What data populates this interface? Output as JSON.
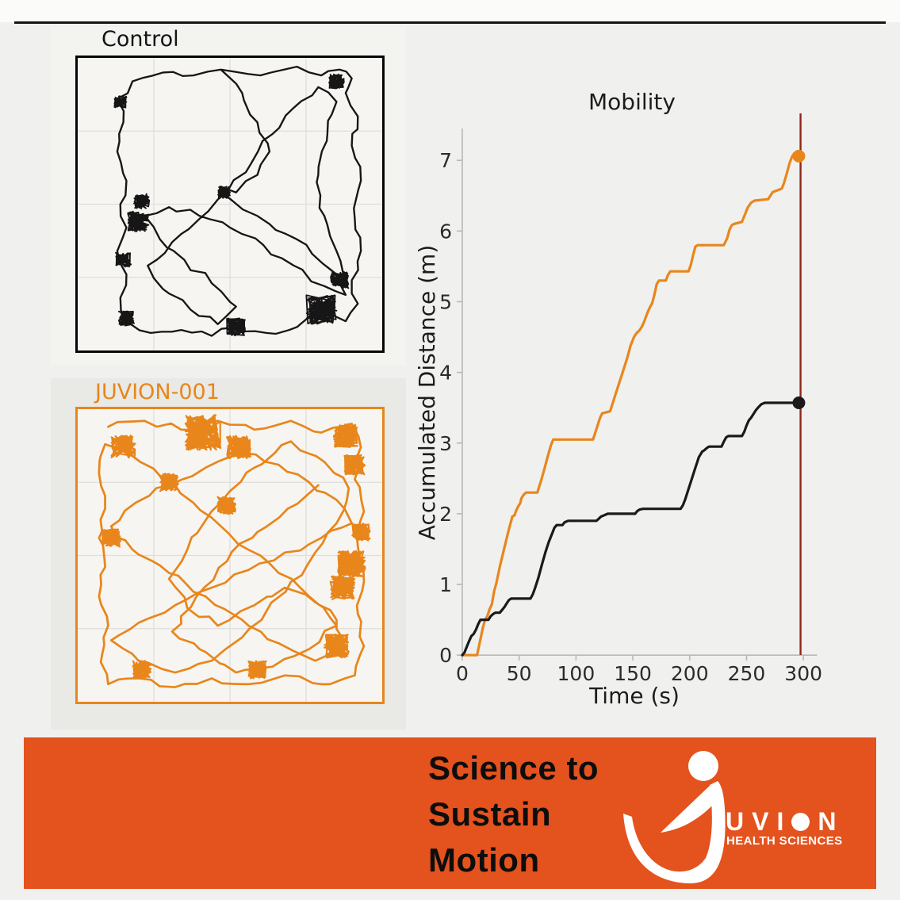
{
  "page": {
    "background": "#f0f0ee",
    "divider_color": "#161616"
  },
  "panels": {
    "control": {
      "label": "Control",
      "trace_color": "#161616",
      "border_color": "#060606",
      "canvas_color": "#f6f5f1"
    },
    "juvion": {
      "label": "JUVION-001",
      "trace_color": "#e8861c",
      "border_color": "#e8861c",
      "canvas_color": "#f6f5f1"
    }
  },
  "trajectories": {
    "control": {
      "color": "#161616",
      "waypoints": [
        [
          47,
          4
        ],
        [
          60,
          6
        ],
        [
          72,
          3
        ],
        [
          80,
          6
        ],
        [
          86,
          4
        ],
        [
          90,
          7
        ],
        [
          88,
          12
        ],
        [
          92,
          20
        ],
        [
          90,
          30
        ],
        [
          93,
          42
        ],
        [
          91,
          55
        ],
        [
          93,
          66
        ],
        [
          90,
          76
        ],
        [
          92,
          84
        ],
        [
          88,
          90
        ],
        [
          80,
          87
        ],
        [
          72,
          92
        ],
        [
          62,
          94
        ],
        [
          52,
          92
        ],
        [
          44,
          95
        ],
        [
          34,
          93
        ],
        [
          24,
          94
        ],
        [
          16,
          90
        ],
        [
          14,
          82
        ],
        [
          16,
          74
        ],
        [
          13,
          66
        ],
        [
          16,
          58
        ],
        [
          14,
          50
        ],
        [
          16,
          42
        ],
        [
          13,
          32
        ],
        [
          15,
          22
        ],
        [
          13,
          14
        ],
        [
          18,
          8
        ],
        [
          28,
          5
        ],
        [
          38,
          6
        ],
        [
          47,
          4
        ],
        [
          54,
          12
        ],
        [
          59,
          22
        ],
        [
          63,
          32
        ],
        [
          59,
          40
        ],
        [
          52,
          46
        ],
        [
          47,
          44
        ],
        [
          51,
          49
        ],
        [
          59,
          54
        ],
        [
          68,
          60
        ],
        [
          77,
          67
        ],
        [
          85,
          74
        ],
        [
          88,
          81
        ],
        [
          81,
          78
        ],
        [
          71,
          71
        ],
        [
          61,
          64
        ],
        [
          50,
          58
        ],
        [
          40,
          54
        ],
        [
          30,
          51
        ],
        [
          22,
          54
        ],
        [
          27,
          62
        ],
        [
          35,
          69
        ],
        [
          44,
          77
        ],
        [
          52,
          85
        ],
        [
          46,
          91
        ],
        [
          37,
          86
        ],
        [
          28,
          79
        ],
        [
          23,
          71
        ],
        [
          31,
          63
        ],
        [
          40,
          55
        ],
        [
          49,
          46
        ],
        [
          57,
          36
        ],
        [
          64,
          26
        ],
        [
          71,
          17
        ],
        [
          79,
          10
        ],
        [
          85,
          15
        ],
        [
          82,
          26
        ],
        [
          79,
          40
        ],
        [
          81,
          54
        ],
        [
          85,
          66
        ],
        [
          87,
          77
        ]
      ],
      "knots": [
        [
          20,
          56,
          3.5
        ],
        [
          21,
          49,
          2.5
        ],
        [
          48,
          46,
          2
        ],
        [
          80,
          86,
          5
        ],
        [
          52,
          92,
          3
        ],
        [
          16,
          89,
          2.5
        ],
        [
          14,
          15,
          2
        ],
        [
          85,
          8,
          2.5
        ],
        [
          86,
          76,
          3
        ],
        [
          15,
          69,
          2.5
        ]
      ]
    },
    "juvion": {
      "color": "#e8861c",
      "waypoints": [
        [
          10,
          6
        ],
        [
          22,
          4
        ],
        [
          34,
          7
        ],
        [
          46,
          4
        ],
        [
          58,
          7
        ],
        [
          70,
          4
        ],
        [
          80,
          8
        ],
        [
          90,
          5
        ],
        [
          93,
          13
        ],
        [
          91,
          24
        ],
        [
          94,
          35
        ],
        [
          92,
          47
        ],
        [
          94,
          59
        ],
        [
          92,
          70
        ],
        [
          94,
          81
        ],
        [
          91,
          91
        ],
        [
          80,
          94
        ],
        [
          68,
          91
        ],
        [
          56,
          94
        ],
        [
          44,
          92
        ],
        [
          32,
          95
        ],
        [
          20,
          92
        ],
        [
          10,
          94
        ],
        [
          8,
          84
        ],
        [
          10,
          74
        ],
        [
          7,
          64
        ],
        [
          9,
          54
        ],
        [
          7,
          44
        ],
        [
          9,
          34
        ],
        [
          7,
          22
        ],
        [
          9,
          12
        ],
        [
          18,
          16
        ],
        [
          28,
          24
        ],
        [
          38,
          32
        ],
        [
          47,
          40
        ],
        [
          56,
          48
        ],
        [
          66,
          56
        ],
        [
          76,
          64
        ],
        [
          85,
          72
        ],
        [
          88,
          82
        ],
        [
          78,
          86
        ],
        [
          66,
          80
        ],
        [
          54,
          72
        ],
        [
          42,
          64
        ],
        [
          30,
          56
        ],
        [
          18,
          48
        ],
        [
          11,
          40
        ],
        [
          19,
          32
        ],
        [
          30,
          26
        ],
        [
          42,
          20
        ],
        [
          54,
          15
        ],
        [
          66,
          19
        ],
        [
          76,
          25
        ],
        [
          85,
          31
        ],
        [
          90,
          39
        ],
        [
          80,
          44
        ],
        [
          68,
          49
        ],
        [
          56,
          55
        ],
        [
          44,
          61
        ],
        [
          32,
          67
        ],
        [
          20,
          73
        ],
        [
          11,
          79
        ],
        [
          20,
          86
        ],
        [
          32,
          90
        ],
        [
          44,
          86
        ],
        [
          54,
          78
        ],
        [
          62,
          69
        ],
        [
          70,
          59
        ],
        [
          78,
          49
        ],
        [
          85,
          39
        ],
        [
          89,
          27
        ],
        [
          81,
          18
        ],
        [
          70,
          11
        ],
        [
          58,
          20
        ],
        [
          50,
          28
        ],
        [
          42,
          38
        ],
        [
          36,
          48
        ],
        [
          30,
          58
        ],
        [
          36,
          68
        ],
        [
          46,
          74
        ],
        [
          58,
          67
        ],
        [
          68,
          61
        ],
        [
          78,
          66
        ],
        [
          85,
          74
        ],
        [
          76,
          82
        ],
        [
          64,
          88
        ],
        [
          52,
          90
        ],
        [
          40,
          82
        ],
        [
          31,
          76
        ],
        [
          39,
          64
        ],
        [
          49,
          52
        ],
        [
          59,
          42
        ],
        [
          69,
          34
        ],
        [
          79,
          26
        ]
      ],
      "knots": [
        [
          41,
          8,
          6
        ],
        [
          53,
          13,
          4
        ],
        [
          88,
          9,
          4
        ],
        [
          91,
          19,
          3.5
        ],
        [
          15,
          13,
          4
        ],
        [
          49,
          33,
          3
        ],
        [
          90,
          53,
          4.5
        ],
        [
          87,
          61,
          4
        ],
        [
          11,
          44,
          3
        ],
        [
          85,
          81,
          4
        ],
        [
          21,
          89,
          3
        ],
        [
          59,
          89,
          3
        ],
        [
          93,
          42,
          3
        ],
        [
          30,
          25,
          3
        ]
      ]
    }
  },
  "chart_data": {
    "type": "line",
    "title": "Mobility",
    "xlabel": "Time (s)",
    "ylabel": "Accumulated Distance (m)",
    "xlim": [
      0,
      312
    ],
    "ylim": [
      0,
      7.45
    ],
    "x_ticks": [
      0,
      50,
      100,
      150,
      200,
      250,
      300
    ],
    "y_ticks": [
      0,
      1,
      2,
      3,
      4,
      5,
      6,
      7
    ],
    "grid": false,
    "legend": "none",
    "spine_color": "#b9b8b4",
    "tick_label_color": "#2b2b2b",
    "vline": {
      "x": 297.5,
      "color": "#8f2617"
    },
    "series": [
      {
        "name": "JUVION-001",
        "color": "#e8861c",
        "end_dot": [
          296,
          7.06
        ],
        "points": [
          [
            0,
            0
          ],
          [
            13,
            0
          ],
          [
            15,
            0.15
          ],
          [
            18,
            0.38
          ],
          [
            20,
            0.5
          ],
          [
            22,
            0.55
          ],
          [
            24,
            0.65
          ],
          [
            26,
            0.72
          ],
          [
            28,
            0.9
          ],
          [
            30,
            1.02
          ],
          [
            33,
            1.25
          ],
          [
            36,
            1.45
          ],
          [
            39,
            1.65
          ],
          [
            41,
            1.78
          ],
          [
            43,
            1.9
          ],
          [
            44,
            1.96
          ],
          [
            46,
            1.98
          ],
          [
            47,
            2.03
          ],
          [
            49,
            2.1
          ],
          [
            51,
            2.15
          ],
          [
            52,
            2.22
          ],
          [
            54,
            2.27
          ],
          [
            56,
            2.3
          ],
          [
            66,
            2.3
          ],
          [
            69,
            2.45
          ],
          [
            72,
            2.62
          ],
          [
            75,
            2.8
          ],
          [
            78,
            2.97
          ],
          [
            80,
            3.05
          ],
          [
            115,
            3.05
          ],
          [
            118,
            3.2
          ],
          [
            121,
            3.35
          ],
          [
            123,
            3.42
          ],
          [
            130,
            3.45
          ],
          [
            133,
            3.6
          ],
          [
            137,
            3.8
          ],
          [
            141,
            4.0
          ],
          [
            145,
            4.2
          ],
          [
            148,
            4.38
          ],
          [
            151,
            4.5
          ],
          [
            153,
            4.55
          ],
          [
            156,
            4.6
          ],
          [
            158,
            4.65
          ],
          [
            160,
            4.72
          ],
          [
            163,
            4.85
          ],
          [
            165,
            4.92
          ],
          [
            167,
            4.98
          ],
          [
            169,
            5.1
          ],
          [
            171,
            5.25
          ],
          [
            173,
            5.3
          ],
          [
            179,
            5.3
          ],
          [
            181,
            5.38
          ],
          [
            183,
            5.43
          ],
          [
            199,
            5.43
          ],
          [
            201,
            5.52
          ],
          [
            203,
            5.66
          ],
          [
            205,
            5.78
          ],
          [
            207,
            5.8
          ],
          [
            230,
            5.8
          ],
          [
            233,
            5.9
          ],
          [
            235,
            6.02
          ],
          [
            237,
            6.08
          ],
          [
            239,
            6.1
          ],
          [
            246,
            6.13
          ],
          [
            249,
            6.25
          ],
          [
            251,
            6.33
          ],
          [
            254,
            6.4
          ],
          [
            257,
            6.43
          ],
          [
            269,
            6.45
          ],
          [
            271,
            6.5
          ],
          [
            273,
            6.55
          ],
          [
            281,
            6.6
          ],
          [
            283,
            6.68
          ],
          [
            286,
            6.85
          ],
          [
            288,
            6.97
          ],
          [
            290,
            7.05
          ],
          [
            292,
            7.1
          ],
          [
            294,
            7.08
          ],
          [
            296,
            7.06
          ]
        ]
      },
      {
        "name": "Control",
        "color": "#1a1a1a",
        "end_dot": [
          296,
          3.57
        ],
        "points": [
          [
            0,
            0
          ],
          [
            2,
            0.04
          ],
          [
            4,
            0.12
          ],
          [
            6,
            0.2
          ],
          [
            8,
            0.27
          ],
          [
            10,
            0.3
          ],
          [
            12,
            0.36
          ],
          [
            14,
            0.44
          ],
          [
            16,
            0.5
          ],
          [
            23,
            0.5
          ],
          [
            25,
            0.55
          ],
          [
            27,
            0.58
          ],
          [
            29,
            0.6
          ],
          [
            33,
            0.6
          ],
          [
            35,
            0.64
          ],
          [
            37,
            0.68
          ],
          [
            39,
            0.73
          ],
          [
            41,
            0.78
          ],
          [
            43,
            0.8
          ],
          [
            60,
            0.8
          ],
          [
            62,
            0.86
          ],
          [
            64,
            0.95
          ],
          [
            67,
            1.1
          ],
          [
            70,
            1.28
          ],
          [
            73,
            1.45
          ],
          [
            76,
            1.6
          ],
          [
            79,
            1.72
          ],
          [
            81,
            1.8
          ],
          [
            83,
            1.84
          ],
          [
            88,
            1.84
          ],
          [
            90,
            1.88
          ],
          [
            93,
            1.9
          ],
          [
            118,
            1.9
          ],
          [
            120,
            1.93
          ],
          [
            122,
            1.96
          ],
          [
            125,
            1.98
          ],
          [
            128,
            2.0
          ],
          [
            152,
            2.0
          ],
          [
            154,
            2.04
          ],
          [
            156,
            2.06
          ],
          [
            159,
            2.07
          ],
          [
            192,
            2.07
          ],
          [
            194,
            2.12
          ],
          [
            196,
            2.2
          ],
          [
            199,
            2.35
          ],
          [
            202,
            2.5
          ],
          [
            205,
            2.65
          ],
          [
            208,
            2.8
          ],
          [
            211,
            2.88
          ],
          [
            213,
            2.9
          ],
          [
            215,
            2.93
          ],
          [
            217,
            2.95
          ],
          [
            228,
            2.95
          ],
          [
            230,
            3.02
          ],
          [
            232,
            3.08
          ],
          [
            234,
            3.1
          ],
          [
            246,
            3.1
          ],
          [
            248,
            3.16
          ],
          [
            250,
            3.25
          ],
          [
            252,
            3.32
          ],
          [
            254,
            3.36
          ],
          [
            256,
            3.41
          ],
          [
            258,
            3.46
          ],
          [
            260,
            3.5
          ],
          [
            263,
            3.55
          ],
          [
            266,
            3.57
          ],
          [
            296,
            3.57
          ]
        ]
      }
    ]
  },
  "banner": {
    "background": "#e4521e",
    "headline_lines": [
      "Science to",
      "Sustain",
      "Motion"
    ],
    "headline_color": "#0d0d0d",
    "logo": {
      "brand": "UVION",
      "tagline": "HEALTH SCIENCES",
      "color": "#ffffff"
    }
  }
}
